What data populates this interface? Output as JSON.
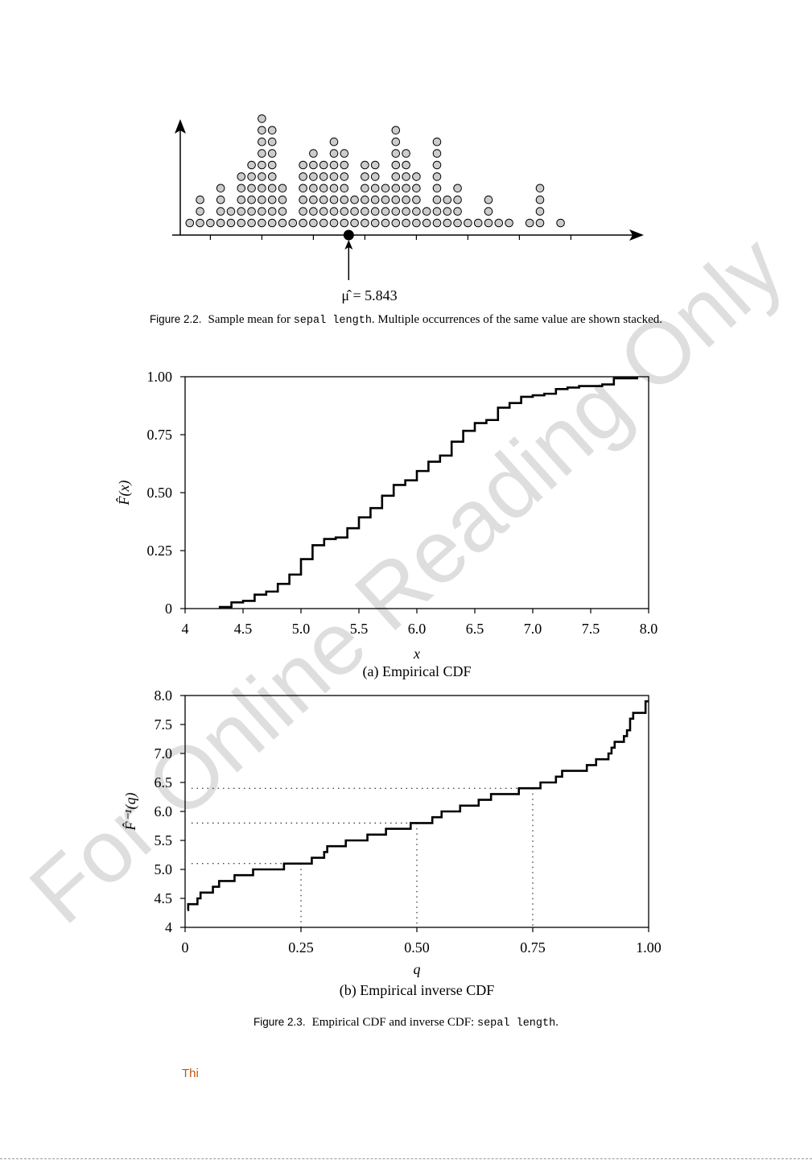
{
  "figure22": {
    "caption_label": "Figure 2.2.",
    "caption_pre": "Sample mean for ",
    "caption_code": "sepal length",
    "caption_post": ". Multiple occurrences of the same value are shown stacked.",
    "mean_label": "μ̂ = 5.843",
    "mean_value": 5.843
  },
  "figure23": {
    "caption_label": "Figure 2.3.",
    "caption_pre": "Empirical CDF and inverse CDF: ",
    "caption_code": "sepal length",
    "caption_post": "."
  },
  "footer_text": "Thi",
  "watermark": "For Online Reading Only",
  "colors": {
    "dot_fill": "#cccccc",
    "line": "#000000",
    "footer": "#c0560a"
  },
  "chart_data": [
    {
      "type": "scatter",
      "title": "",
      "xlabel": "",
      "ylabel": "",
      "xlim": [
        4.2,
        8.45
      ],
      "grid": false,
      "values": [
        4.3,
        4.4,
        4.5,
        4.6,
        4.7,
        4.8,
        4.9,
        5.0,
        5.1,
        5.2,
        5.3,
        5.4,
        5.5,
        5.6,
        5.7,
        5.8,
        5.9,
        6.0,
        6.1,
        6.2,
        6.3,
        6.4,
        6.5,
        6.6,
        6.7,
        6.8,
        6.9,
        7.0,
        7.1,
        7.2,
        7.3,
        7.4,
        7.6,
        7.7,
        7.9
      ],
      "counts": [
        1,
        3,
        1,
        4,
        2,
        5,
        6,
        10,
        9,
        4,
        1,
        6,
        7,
        6,
        8,
        7,
        3,
        6,
        6,
        4,
        9,
        7,
        5,
        2,
        8,
        3,
        4,
        1,
        1,
        3,
        1,
        1,
        1,
        4,
        1
      ],
      "mean": 5.843
    },
    {
      "type": "line",
      "title": "(a) Empirical CDF",
      "xlabel": "x",
      "ylabel": "F̂(x)",
      "xlim": [
        4.0,
        8.0
      ],
      "ylim": [
        0,
        1.0
      ],
      "xticks": [
        "4",
        "4.5",
        "5.0",
        "5.5",
        "6.0",
        "6.5",
        "7.0",
        "7.5",
        "8.0"
      ],
      "yticks": [
        "0",
        "0.25",
        "0.50",
        "0.75",
        "1.00"
      ],
      "step": true
    },
    {
      "type": "line",
      "title": "(b) Empirical inverse CDF",
      "xlabel": "q",
      "ylabel": "F̂⁻¹(q)",
      "xlim": [
        0,
        1.0
      ],
      "ylim": [
        4.0,
        8.0
      ],
      "xticks": [
        "0",
        "0.25",
        "0.50",
        "0.75",
        "1.00"
      ],
      "yticks": [
        "4",
        "4.5",
        "5.0",
        "5.5",
        "6.0",
        "6.5",
        "7.0",
        "7.5",
        "8.0"
      ],
      "quartiles": [
        {
          "q": 0.25,
          "x": 5.1
        },
        {
          "q": 0.5,
          "x": 5.8
        },
        {
          "q": 0.75,
          "x": 6.4
        }
      ],
      "step": true
    }
  ]
}
